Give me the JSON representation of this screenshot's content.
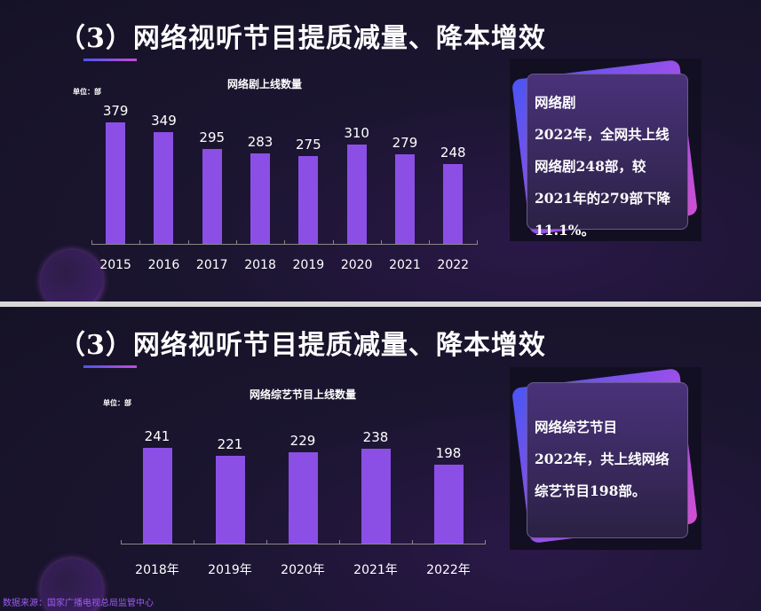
{
  "slide1": {
    "title": "（3）网络视听节目提质减量、降本增效",
    "card": {
      "heading": "网络剧",
      "body": "2022年，全网共上线网络剧248部，较2021年的279部下降11.1%。"
    }
  },
  "slide2": {
    "title": "（3）网络视听节目提质减量、降本增效",
    "card": {
      "heading": "网络综艺节目",
      "body": "2022年，共上线网络综艺节目198部。"
    },
    "source": "数据来源：国家广播电视总局监管中心"
  },
  "colors": {
    "bar": "#8b4fe6",
    "accent_start": "#4b57f0",
    "accent_end": "#c44bd4"
  },
  "chart_data": [
    {
      "type": "bar",
      "title": "网络剧上线数量",
      "unit": "单位：部",
      "categories": [
        "2015",
        "2016",
        "2017",
        "2018",
        "2019",
        "2020",
        "2021",
        "2022"
      ],
      "values": [
        379,
        349,
        295,
        283,
        275,
        310,
        279,
        248
      ],
      "ylim": [
        0,
        400
      ]
    },
    {
      "type": "bar",
      "title": "网络综艺节目上线数量",
      "unit": "单位：部",
      "categories": [
        "2018年",
        "2019年",
        "2020年",
        "2021年",
        "2022年"
      ],
      "values": [
        241,
        221,
        229,
        238,
        198
      ],
      "ylim": [
        0,
        280
      ]
    }
  ]
}
